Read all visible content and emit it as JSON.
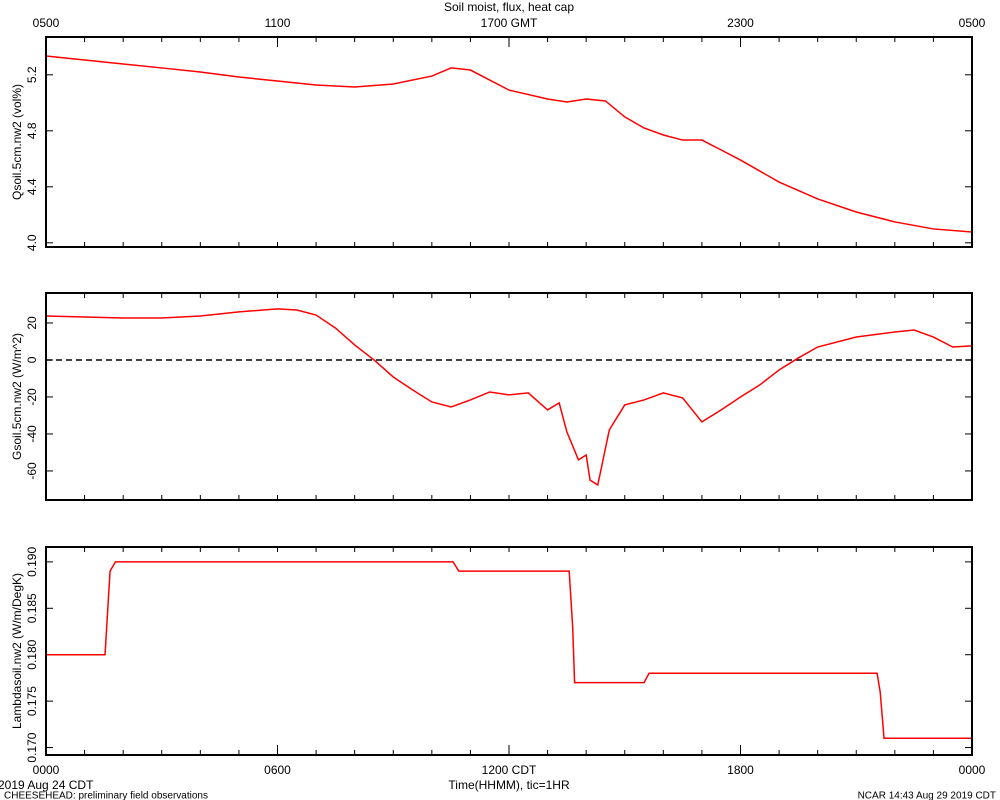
{
  "chart_data": [
    {
      "type": "line",
      "title": "Soil moist, flux, heat cap",
      "ylabel": "Qsoil.5cm.nw2 (vol%)",
      "xlim": [
        0,
        24
      ],
      "top_xticks": [
        {
          "value": 0,
          "label": "0500"
        },
        {
          "value": 6,
          "label": "1100"
        },
        {
          "value": 12,
          "label": "1700 GMT"
        },
        {
          "value": 18,
          "label": "2300"
        },
        {
          "value": 24,
          "label": "0500"
        }
      ],
      "ylim": [
        3.97,
        5.47
      ],
      "yticks": [
        {
          "value": 4.0,
          "label": "4.0"
        },
        4.4,
        4.8,
        5.2
      ],
      "color": "#ff0000",
      "x": [
        0,
        1,
        2,
        3,
        4,
        5,
        6,
        7,
        8,
        9,
        10,
        10.5,
        11,
        12,
        13,
        13.5,
        14,
        14.5,
        15,
        15.5,
        16,
        16.5,
        17,
        17.5,
        18,
        19,
        20,
        21,
        22,
        23,
        24
      ],
      "values": [
        5.334,
        5.306,
        5.277,
        5.249,
        5.22,
        5.184,
        5.156,
        5.127,
        5.113,
        5.134,
        5.191,
        5.249,
        5.234,
        5.091,
        5.027,
        5.006,
        5.027,
        5.013,
        4.899,
        4.82,
        4.77,
        4.734,
        4.734,
        4.663,
        4.591,
        4.434,
        4.313,
        4.22,
        4.149,
        4.099,
        4.077
      ]
    },
    {
      "type": "line",
      "ylabel": "Gsoil.5cm.nw2 (W/m^2)",
      "xlim": [
        0,
        24
      ],
      "ylim": [
        -75.7,
        36.2
      ],
      "yticks": [
        -60,
        -40,
        -20,
        0,
        20
      ],
      "reference_line": 0,
      "color": "#ff0000",
      "x": [
        0,
        2,
        3,
        4,
        5,
        6,
        6.5,
        7,
        7.5,
        8,
        8.5,
        9,
        9.5,
        10,
        10.5,
        11,
        11.5,
        12,
        12.5,
        13,
        13.3,
        13.5,
        13.8,
        14,
        14.1,
        14.3,
        14.6,
        15,
        15.5,
        16,
        16.5,
        17,
        17.5,
        18,
        18.5,
        19,
        19.5,
        20,
        21,
        22,
        22.5,
        23,
        23.5,
        24
      ],
      "values": [
        23.8,
        22.7,
        22.7,
        23.8,
        26,
        27.6,
        27,
        24.3,
        17.3,
        8.1,
        0,
        -9.2,
        -16.2,
        -22.7,
        -25.4,
        -21.6,
        -17.3,
        -18.9,
        -17.8,
        -27,
        -23.2,
        -38.9,
        -54,
        -51.4,
        -64.9,
        -67.6,
        -37.8,
        -24.3,
        -21.6,
        -17.8,
        -20.5,
        -33.5,
        -27,
        -20,
        -13.5,
        -5.4,
        1.1,
        7,
        12.4,
        15.1,
        16.2,
        12.4,
        7,
        7.6
      ]
    },
    {
      "type": "line",
      "ylabel": "Lambdasoil.nw2 (W/m/DegK)",
      "xlabel": "Time(HHMM), tic=1HR",
      "xlim": [
        0,
        24
      ],
      "xticks": [
        {
          "value": 0,
          "label": "0000"
        },
        {
          "value": 6,
          "label": "0600"
        },
        {
          "value": 12,
          "label": "1200 CDT"
        },
        {
          "value": 18,
          "label": "1800"
        },
        {
          "value": 24,
          "label": "0000"
        }
      ],
      "ylim": [
        0.1692,
        0.1916
      ],
      "yticks": [
        {
          "value": 0.17,
          "label": "0.170"
        },
        {
          "value": 0.175,
          "label": "0.175"
        },
        {
          "value": 0.18,
          "label": "0.180"
        },
        {
          "value": 0.185,
          "label": "0.185"
        },
        {
          "value": 0.19,
          "label": "0.190"
        }
      ],
      "color": "#ff0000",
      "x": [
        0,
        1.53,
        1.66,
        1.8,
        10.55,
        10.7,
        13.56,
        13.65,
        13.7,
        15.5,
        15.63,
        21.54,
        21.62,
        21.72,
        24
      ],
      "values": [
        0.18,
        0.18,
        0.189,
        0.19,
        0.19,
        0.189,
        0.189,
        0.183,
        0.177,
        0.177,
        0.178,
        0.178,
        0.176,
        0.171,
        0.171
      ]
    }
  ],
  "footer": {
    "date": "2019 Aug 24 CDT",
    "project": "CHEESEHEAD: preliminary field observations",
    "stamp": "NCAR 14:43 Aug 29 2019 CDT"
  }
}
